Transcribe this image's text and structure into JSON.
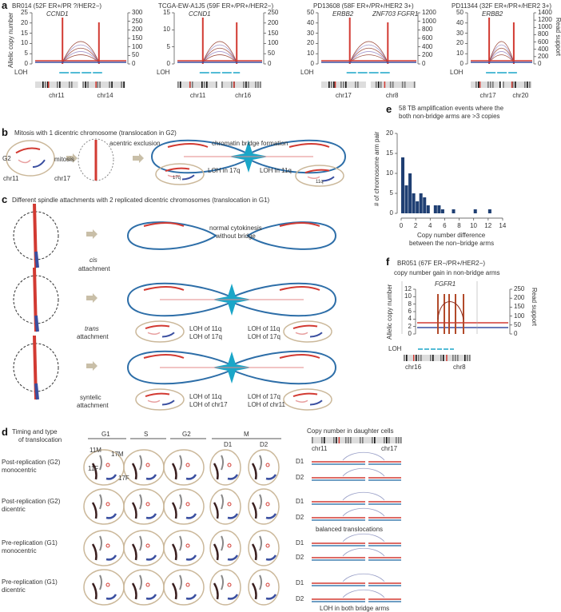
{
  "panel_a": {
    "label": "a",
    "ylabel_left": "Allelic copy number",
    "ylabel_right": "Read support",
    "loh": "LOH",
    "plots": [
      {
        "title": "BR014 (52F ER+/PR ?/HER2−)",
        "genes": [
          "CCND1"
        ],
        "left_ticks": [
          "0",
          "5",
          "10",
          "15",
          "20",
          "25"
        ],
        "right_ticks": [
          "0",
          "50",
          "100",
          "150",
          "200",
          "250",
          "300"
        ],
        "chrs": [
          "chr11",
          "chr14"
        ]
      },
      {
        "title": "TCGA-EW-A1J5 (59F ER+/PR+/HER2−)",
        "genes": [
          "CCND1"
        ],
        "left_ticks": [
          "0",
          "5",
          "10",
          "15"
        ],
        "right_ticks": [
          "0",
          "50",
          "100",
          "150",
          "200",
          "250"
        ],
        "chrs": [
          "chr11",
          "chr16"
        ]
      },
      {
        "title": "PD13608 (58F ER+/PR+/HER2 3+)",
        "genes": [
          "ERBB2",
          "ZNF703 FGFR1"
        ],
        "left_ticks": [
          "0",
          "10",
          "20",
          "30",
          "40",
          "50"
        ],
        "right_ticks": [
          "0",
          "200",
          "400",
          "600",
          "800",
          "1000",
          "1200"
        ],
        "chrs": [
          "chr17",
          "chr8"
        ]
      },
      {
        "title": "PD11344 (32F ER+/PR+/HER2 3+)",
        "genes": [
          "ERBB2"
        ],
        "left_ticks": [
          "0",
          "10",
          "20",
          "30",
          "40",
          "50"
        ],
        "right_ticks": [
          "0",
          "200",
          "400",
          "600",
          "800",
          "1000",
          "1200",
          "1400"
        ],
        "chrs": [
          "chr17",
          "chr20"
        ]
      }
    ]
  },
  "panel_b": {
    "label": "b",
    "title": "Mitosis with 1 dicentric chromosome (translocation in G2)",
    "g2": "G2",
    "mitosis": "mitosis",
    "acentric": "acentric exclusion",
    "bridge": "chromatin bridge formation",
    "chr11": "chr11",
    "chr17": "chr17",
    "loh17": "LOH in 17q",
    "loh11": "LOH in 11q",
    "q17": "17q",
    "q11": "11q"
  },
  "panel_c": {
    "label": "c",
    "title": "Different spindle attachments with 2 replicated dicentric chromosomes (translocation in G1)",
    "rows": [
      {
        "mode": "cis",
        "attach": "attachment",
        "note1": "normal cytokinesis",
        "note2": "without bridge"
      },
      {
        "mode": "trans",
        "attach": "attachment",
        "left": [
          "LOH of 11q",
          "LOH of 17q"
        ],
        "right": [
          "LOH of 11q",
          "LOH of 17q"
        ]
      },
      {
        "mode": "syntelic",
        "attach": "attachment",
        "left": [
          "LOH of 11q",
          "LOH of chr17"
        ],
        "right": [
          "LOH of 17q",
          "LOH of chr11"
        ]
      }
    ]
  },
  "panel_d": {
    "label": "d",
    "title": [
      "Timing and type",
      "of translocation"
    ],
    "phases": [
      "G1",
      "S",
      "G2",
      "M"
    ],
    "daughters": [
      "D1",
      "D2"
    ],
    "rows": [
      [
        "Post-replication (G2)",
        "monocentric"
      ],
      [
        "Post-replication (G2)",
        "dicentric"
      ],
      [
        "Pre-replication (G1)",
        "monocentric"
      ],
      [
        "Pre-replication (G1)",
        "dicentric"
      ]
    ],
    "chr_labels": [
      "11M",
      "17M",
      "11F",
      "17F"
    ],
    "cn_title": "Copy number in daughter cells",
    "cn_chrs": [
      "chr11",
      "chr17"
    ],
    "balanced": "balanced translocations",
    "loh_both": "LOH in both bridge arms"
  },
  "panel_f": {
    "label": "f",
    "title": "BR051 (67F ER−/PR+/HER2−)",
    "subtitle": "copy number gain in non-bridge arms",
    "gene": "FGFR1",
    "left_ticks": [
      "0",
      "2",
      "4",
      "6",
      "8",
      "10",
      "12"
    ],
    "right_ticks": [
      "0",
      "50",
      "100",
      "150",
      "200",
      "250"
    ],
    "ylabel_left": "Allelic copy number",
    "ylabel_right": "Read support",
    "loh": "LOH",
    "chrs": [
      "chr16",
      "chr8"
    ]
  },
  "colors": {
    "red": "#d23a32",
    "blue": "#3a4fa0",
    "cyan": "#1aa6c8",
    "bar": "#1f3f73",
    "cell": "#cbb89a"
  },
  "chart_data": {
    "type": "bar",
    "label": "e",
    "title": "58 TB amplification events where the",
    "subtitle": "both non-bridge arms are >3 copies",
    "xlabel": "Copy number difference",
    "xlabel2": "between the non−bridge arms",
    "ylabel": "# of chromosome arm pair",
    "bin_width": 0.5,
    "bin_starts": [
      0,
      0.5,
      1,
      1.5,
      2,
      2.5,
      3,
      3.5,
      4,
      4.5,
      5,
      5.5,
      7,
      10,
      12
    ],
    "values": [
      14,
      7,
      10,
      5,
      3,
      5,
      4,
      2,
      0,
      2,
      2,
      1,
      1,
      1,
      1
    ],
    "xlim": [
      0,
      14
    ],
    "ylim": [
      0,
      20
    ],
    "xticks": [
      "0",
      "2",
      "4",
      "6",
      "8",
      "10",
      "12",
      "14"
    ],
    "yticks": [
      "0",
      "5",
      "10",
      "15",
      "20"
    ]
  }
}
